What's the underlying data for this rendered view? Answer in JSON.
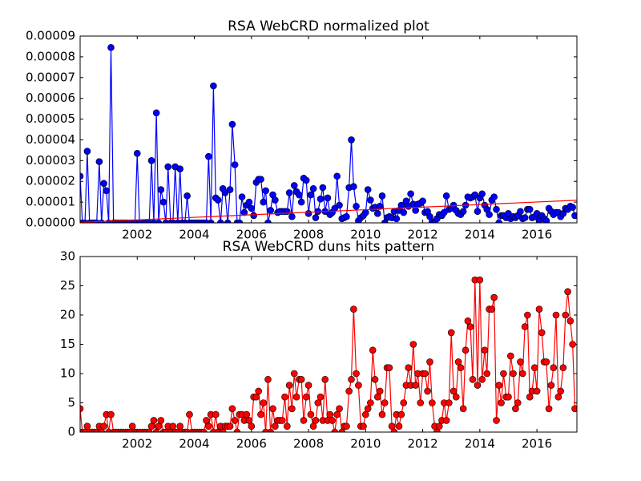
{
  "chart_data": [
    {
      "type": "line",
      "title": "RSA WebCRD normalized plot",
      "x": [
        2000,
        2000.08,
        2000.17,
        2000.25,
        2000.33,
        2000.42,
        2000.5,
        2000.58,
        2000.67,
        2000.75,
        2000.83,
        2000.92,
        2001,
        2001.08,
        2001.17,
        2001.25,
        2001.33,
        2001.42,
        2001.5,
        2001.58,
        2001.67,
        2001.75,
        2001.83,
        2001.92,
        2002,
        2002.08,
        2002.17,
        2002.25,
        2002.33,
        2002.42,
        2002.5,
        2002.58,
        2002.67,
        2002.75,
        2002.83,
        2002.92,
        2003,
        2003.08,
        2003.17,
        2003.25,
        2003.33,
        2003.42,
        2003.5,
        2003.58,
        2003.67,
        2003.75,
        2003.83,
        2003.92,
        2004,
        2004.08,
        2004.17,
        2004.25,
        2004.33,
        2004.42,
        2004.5,
        2004.58,
        2004.67,
        2004.75,
        2004.83,
        2004.92,
        2005,
        2005.08,
        2005.17,
        2005.25,
        2005.33,
        2005.42,
        2005.5,
        2005.58,
        2005.67,
        2005.75,
        2005.83,
        2005.92,
        2006,
        2006.08,
        2006.17,
        2006.25,
        2006.33,
        2006.42,
        2006.5,
        2006.58,
        2006.67,
        2006.75,
        2006.83,
        2006.92,
        2007,
        2007.08,
        2007.17,
        2007.25,
        2007.33,
        2007.42,
        2007.5,
        2007.58,
        2007.67,
        2007.75,
        2007.83,
        2007.92,
        2008,
        2008.08,
        2008.17,
        2008.25,
        2008.33,
        2008.42,
        2008.5,
        2008.58,
        2008.67,
        2008.75,
        2008.83,
        2008.92,
        2009,
        2009.08,
        2009.17,
        2009.25,
        2009.33,
        2009.42,
        2009.5,
        2009.58,
        2009.67,
        2009.75,
        2009.83,
        2009.92,
        2010,
        2010.08,
        2010.17,
        2010.25,
        2010.33,
        2010.42,
        2010.5,
        2010.58,
        2010.67,
        2010.75,
        2010.83,
        2010.92,
        2011,
        2011.08,
        2011.17,
        2011.25,
        2011.33,
        2011.42,
        2011.5,
        2011.58,
        2011.67,
        2011.75,
        2011.83,
        2011.92,
        2012,
        2012.08,
        2012.17,
        2012.25,
        2012.33,
        2012.42,
        2012.5,
        2012.58,
        2012.67,
        2012.75,
        2012.83,
        2012.92,
        2013,
        2013.08,
        2013.17,
        2013.25,
        2013.33,
        2013.42,
        2013.5,
        2013.58,
        2013.67,
        2013.75,
        2013.83,
        2013.92,
        2014,
        2014.08,
        2014.17,
        2014.25,
        2014.33,
        2014.42,
        2014.5,
        2014.58,
        2014.67,
        2014.75,
        2014.83,
        2014.92,
        2015,
        2015.08,
        2015.17,
        2015.25,
        2015.33,
        2015.42,
        2015.5,
        2015.58,
        2015.67,
        2015.75,
        2015.83,
        2015.92,
        2016,
        2016.08,
        2016.17,
        2016.25,
        2016.33,
        2016.42,
        2016.5,
        2016.58,
        2016.67,
        2016.75,
        2016.83,
        2016.92,
        2017,
        2017.08,
        2017.17,
        2017.25,
        2017.33
      ],
      "series": [
        {
          "color": "#0000ff",
          "marker": true,
          "values": [
            2.25e-05,
            0,
            0,
            3.45e-05,
            0,
            0,
            0,
            0,
            2.95e-05,
            0,
            1.9e-05,
            1.55e-05,
            0,
            8.45e-05,
            0,
            0,
            0,
            0,
            0,
            0,
            0,
            0,
            0,
            0,
            3.35e-05,
            0,
            0,
            0,
            0,
            0,
            3e-05,
            0,
            5.3e-05,
            0,
            1.6e-05,
            1e-05,
            0,
            2.7e-05,
            0,
            0,
            2.7e-05,
            0,
            2.6e-05,
            0,
            0,
            1.3e-05,
            0,
            0,
            0,
            0,
            0,
            0,
            0,
            0,
            3.2e-05,
            0,
            6.6e-05,
            1.2e-05,
            1.1e-05,
            0,
            1.65e-05,
            1.45e-05,
            0,
            1.6e-05,
            4.75e-05,
            2.8e-05,
            0,
            0,
            1.25e-05,
            5e-06,
            8.5e-06,
            1e-05,
            7e-06,
            3.5e-06,
            1.95e-05,
            2.1e-05,
            2.1e-05,
            1e-05,
            1.55e-05,
            0,
            6e-06,
            1.35e-05,
            1.1e-05,
            5e-06,
            5.5e-06,
            5.5e-06,
            5.5e-06,
            5.5e-06,
            1.45e-05,
            3e-06,
            1.8e-05,
            1.5e-05,
            1.35e-05,
            1e-05,
            2.15e-05,
            2.05e-05,
            4.5e-06,
            1.35e-05,
            1.65e-05,
            2.5e-06,
            5.5e-06,
            1.15e-05,
            1.7e-05,
            5.5e-06,
            1.2e-05,
            4e-06,
            5e-06,
            7e-06,
            2.25e-05,
            8.5e-06,
            2e-06,
            2.5e-06,
            3e-06,
            1.7e-05,
            4e-05,
            1.75e-05,
            8e-06,
            1e-06,
            2.5e-06,
            3.5e-06,
            5e-06,
            1.6e-05,
            1.1e-05,
            7e-06,
            7.5e-06,
            4.5e-06,
            8e-06,
            1.3e-05,
            0,
            2.5e-06,
            3e-06,
            2.5e-06,
            5.5e-06,
            2e-06,
            6e-06,
            8.5e-06,
            5e-06,
            1.05e-05,
            8e-06,
            1.4e-05,
            9e-06,
            6e-06,
            9e-06,
            9.5e-06,
            1.05e-05,
            5e-06,
            5.5e-06,
            3e-06,
            5e-07,
            0,
            2e-06,
            4e-06,
            3.5e-06,
            5e-06,
            1.3e-05,
            6.5e-06,
            7e-06,
            8.5e-06,
            6e-06,
            4.5e-06,
            4e-06,
            5.5e-06,
            8.5e-06,
            1.25e-05,
            1.2e-05,
            1.25e-05,
            1.35e-05,
            5.5e-06,
            1.2e-05,
            1.4e-05,
            8.5e-06,
            6.5e-06,
            4e-06,
            1.1e-05,
            1.25e-05,
            6.5e-06,
            0,
            3.5e-06,
            3.5e-06,
            2.5e-06,
            4.5e-06,
            2e-06,
            3e-06,
            2.5e-06,
            3.5e-06,
            5.5e-06,
            2e-06,
            2.5e-06,
            6.5e-06,
            6.5e-06,
            2.5e-06,
            3e-06,
            4.5e-06,
            1e-06,
            3.5e-06,
            2e-06,
            1e-06,
            7e-06,
            5.5e-06,
            4e-06,
            5e-06,
            5e-06,
            3e-06,
            4.5e-06,
            7e-06,
            6.5e-06,
            8e-06,
            7.5e-06,
            3.5e-06
          ]
        },
        {
          "color": "#ff0000",
          "marker": false,
          "x": [
            2000,
            2017.4
          ],
          "values": [
            2e-07,
            1.09e-05
          ]
        }
      ],
      "xlim": [
        2000,
        2017.4
      ],
      "xticks": [
        2002,
        2004,
        2006,
        2008,
        2010,
        2012,
        2014,
        2016
      ],
      "ylim": [
        0,
        9e-05
      ],
      "yticks": [
        {
          "value": 0,
          "label": "0.00000"
        },
        1e-05,
        2e-05,
        3e-05,
        4e-05,
        5e-05,
        6e-05,
        7e-05,
        8e-05,
        9e-05
      ],
      "grid": false
    },
    {
      "type": "line",
      "title": "RSA WebCRD duns hits pattern",
      "x": [
        2000,
        2000.08,
        2000.17,
        2000.25,
        2000.33,
        2000.42,
        2000.5,
        2000.58,
        2000.67,
        2000.75,
        2000.83,
        2000.92,
        2001,
        2001.08,
        2001.17,
        2001.25,
        2001.33,
        2001.42,
        2001.5,
        2001.58,
        2001.67,
        2001.75,
        2001.83,
        2001.92,
        2002,
        2002.08,
        2002.17,
        2002.25,
        2002.33,
        2002.42,
        2002.5,
        2002.58,
        2002.67,
        2002.75,
        2002.83,
        2002.92,
        2003,
        2003.08,
        2003.17,
        2003.25,
        2003.33,
        2003.42,
        2003.5,
        2003.58,
        2003.67,
        2003.75,
        2003.83,
        2003.92,
        2004,
        2004.08,
        2004.17,
        2004.25,
        2004.33,
        2004.42,
        2004.5,
        2004.58,
        2004.67,
        2004.75,
        2004.83,
        2004.92,
        2005,
        2005.08,
        2005.17,
        2005.25,
        2005.33,
        2005.42,
        2005.5,
        2005.58,
        2005.67,
        2005.75,
        2005.83,
        2005.92,
        2006,
        2006.08,
        2006.17,
        2006.25,
        2006.33,
        2006.42,
        2006.5,
        2006.58,
        2006.67,
        2006.75,
        2006.83,
        2006.92,
        2007,
        2007.08,
        2007.17,
        2007.25,
        2007.33,
        2007.42,
        2007.5,
        2007.58,
        2007.67,
        2007.75,
        2007.83,
        2007.92,
        2008,
        2008.08,
        2008.17,
        2008.25,
        2008.33,
        2008.42,
        2008.5,
        2008.58,
        2008.67,
        2008.75,
        2008.83,
        2008.92,
        2009,
        2009.08,
        2009.17,
        2009.25,
        2009.33,
        2009.42,
        2009.5,
        2009.58,
        2009.67,
        2009.75,
        2009.83,
        2009.92,
        2010,
        2010.08,
        2010.17,
        2010.25,
        2010.33,
        2010.42,
        2010.5,
        2010.58,
        2010.67,
        2010.75,
        2010.83,
        2010.92,
        2011,
        2011.08,
        2011.17,
        2011.25,
        2011.33,
        2011.42,
        2011.5,
        2011.58,
        2011.67,
        2011.75,
        2011.83,
        2011.92,
        2012,
        2012.08,
        2012.17,
        2012.25,
        2012.33,
        2012.42,
        2012.5,
        2012.58,
        2012.67,
        2012.75,
        2012.83,
        2012.92,
        2013,
        2013.08,
        2013.17,
        2013.25,
        2013.33,
        2013.42,
        2013.5,
        2013.58,
        2013.67,
        2013.75,
        2013.83,
        2013.92,
        2014,
        2014.08,
        2014.17,
        2014.25,
        2014.33,
        2014.42,
        2014.5,
        2014.58,
        2014.67,
        2014.75,
        2014.83,
        2014.92,
        2015,
        2015.08,
        2015.17,
        2015.25,
        2015.33,
        2015.42,
        2015.5,
        2015.58,
        2015.67,
        2015.75,
        2015.83,
        2015.92,
        2016,
        2016.08,
        2016.17,
        2016.25,
        2016.33,
        2016.42,
        2016.5,
        2016.58,
        2016.67,
        2016.75,
        2016.83,
        2016.92,
        2017,
        2017.08,
        2017.17,
        2017.25,
        2017.33
      ],
      "series": [
        {
          "color": "#ff0000",
          "marker": true,
          "values": [
            4,
            0,
            0,
            1,
            0,
            0,
            0,
            0,
            1,
            0,
            1,
            3,
            0,
            3,
            0,
            0,
            0,
            0,
            0,
            0,
            0,
            0,
            1,
            0,
            0,
            0,
            0,
            0,
            0,
            0,
            1,
            2,
            0,
            1,
            2,
            0,
            0,
            1,
            0,
            1,
            0,
            0,
            1,
            0,
            0,
            0,
            3,
            0,
            0,
            0,
            0,
            0,
            0,
            2,
            1,
            3,
            0,
            3,
            0,
            1,
            0,
            1,
            1,
            1,
            4,
            2,
            0,
            3,
            3,
            2,
            3,
            2,
            1,
            6,
            6,
            7,
            3,
            5,
            0,
            9,
            0,
            4,
            1,
            2,
            2,
            2,
            6,
            1,
            8,
            4,
            10,
            6,
            9,
            9,
            2,
            6,
            8,
            3,
            1,
            2,
            5,
            6,
            2,
            9,
            2,
            3,
            2,
            0,
            3,
            4,
            0,
            1,
            1,
            7,
            9,
            21,
            10,
            8,
            1,
            1,
            3,
            4,
            5,
            14,
            9,
            6,
            7,
            3,
            5,
            11,
            11,
            1,
            0,
            3,
            1,
            3,
            5,
            8,
            11,
            8,
            15,
            8,
            10,
            5,
            10,
            10,
            7,
            12,
            5,
            1,
            0,
            1,
            2,
            5,
            2,
            5,
            17,
            7,
            6,
            12,
            11,
            4,
            14,
            19,
            18,
            9,
            26,
            8,
            26,
            9,
            14,
            10,
            21,
            21,
            23,
            2,
            8,
            5,
            10,
            6,
            6,
            13,
            10,
            4,
            5,
            12,
            10,
            18,
            20,
            6,
            7,
            11,
            7,
            21,
            17,
            12,
            12,
            4,
            8,
            11,
            20,
            6,
            7,
            11,
            20,
            24,
            19,
            15,
            4
          ]
        }
      ],
      "xlim": [
        2000,
        2017.4
      ],
      "xticks": [
        2002,
        2004,
        2006,
        2008,
        2010,
        2012,
        2014,
        2016
      ],
      "ylim": [
        0,
        30
      ],
      "yticks": [
        0,
        5,
        10,
        15,
        20,
        25,
        30
      ],
      "grid": false
    }
  ]
}
